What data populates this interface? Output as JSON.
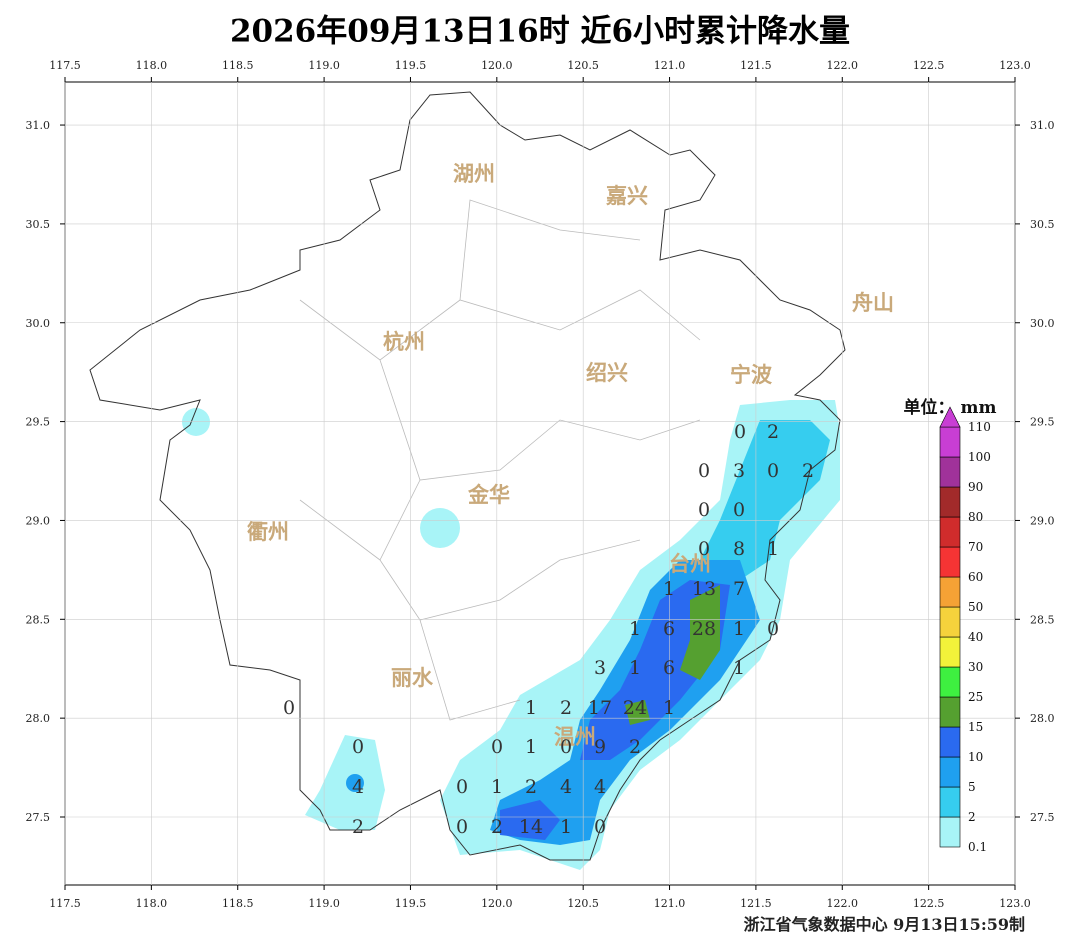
{
  "title": "2026年09月13日16时  近6小时累计降水量",
  "xticks": [
    117.5,
    {
      "value": 118,
      "label": "118.0"
    },
    118.5,
    {
      "value": 119,
      "label": "119.0"
    },
    119.5,
    {
      "value": 120,
      "label": "120.0"
    },
    120.5,
    {
      "value": 121,
      "label": "121.0"
    },
    121.5,
    {
      "value": 122,
      "label": "122.0"
    },
    122.5,
    {
      "value": 123,
      "label": "123.0"
    }
  ],
  "yticks": [
    27.5,
    {
      "value": 28,
      "label": "28.0"
    },
    28.5,
    {
      "value": 29,
      "label": "29.0"
    },
    29.5,
    {
      "value": 30,
      "label": "30.0"
    },
    30.5,
    {
      "value": 31,
      "label": "31.0"
    }
  ],
  "cities": [
    "湖州",
    "嘉兴",
    "舟山",
    "杭州",
    "绍兴",
    "宁波",
    "金华",
    "衢州",
    "台州",
    "丽水",
    "温州"
  ],
  "stations": [
    0,
    2,
    0,
    3,
    0,
    2,
    0,
    0,
    0,
    8,
    1,
    1,
    13,
    7,
    1,
    6,
    28,
    1,
    0,
    3,
    1,
    6,
    1,
    1,
    2,
    17,
    24,
    1,
    0,
    1,
    0,
    9,
    2,
    0,
    1,
    2,
    4,
    4,
    0,
    2,
    14,
    1,
    0,
    0,
    0,
    4,
    2
  ],
  "legend": {
    "title": "单位：  mm",
    "labels": [
      {
        "value": 0.1,
        "label": "0.1"
      },
      2,
      5,
      10,
      15,
      25,
      30,
      40,
      50,
      60,
      70,
      80,
      90,
      100,
      110
    ],
    "colors": [
      "#a8f4f7",
      "#36cdef",
      "#1fa0f0",
      "#2a6af0",
      "#55a030",
      "#3ef040",
      "#f2f23a",
      "#f5d23c",
      "#f5a235",
      "#f53434",
      "#d02c2c",
      "#a22a2a",
      "#a0329a",
      "#c83ed4"
    ]
  },
  "footer": "浙江省气象数据中心   9月13日15:59制"
}
